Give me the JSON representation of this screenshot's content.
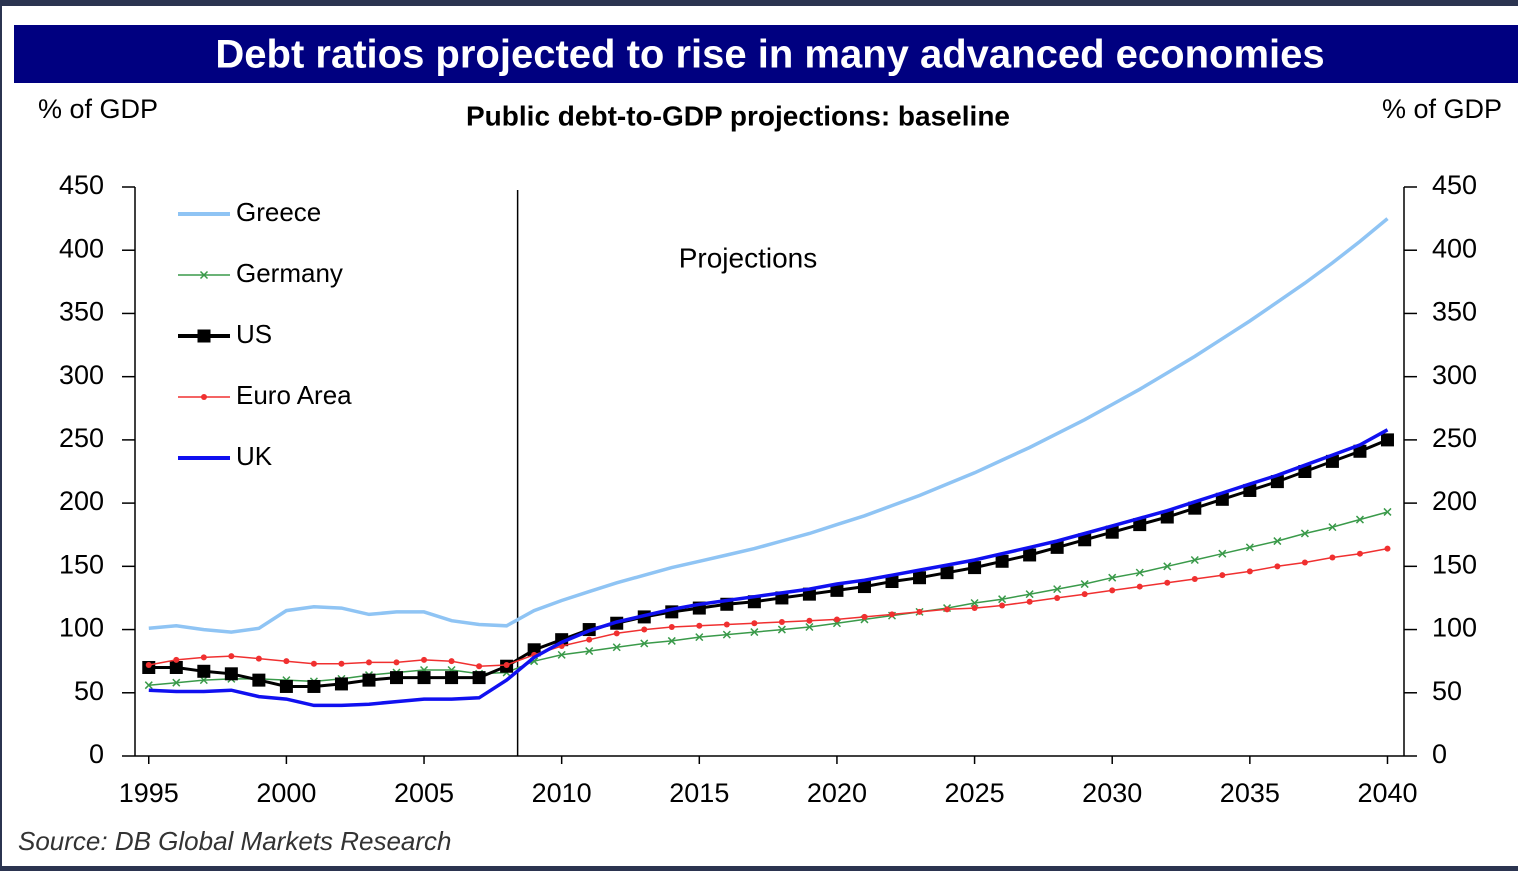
{
  "chart_data": {
    "type": "line",
    "title": "Debt ratios projected to rise in many advanced economies",
    "subtitle": "Public debt-to-GDP projections: baseline",
    "y_label": "% of GDP",
    "y2_label": "% of GDP",
    "source": "Source: DB Global Markets Research",
    "annotation": {
      "text": "Projections",
      "x": 2008.4
    },
    "x": [
      1995,
      1996,
      1997,
      1998,
      1999,
      2000,
      2001,
      2002,
      2003,
      2004,
      2005,
      2006,
      2007,
      2008,
      2009,
      2010,
      2011,
      2012,
      2013,
      2014,
      2015,
      2016,
      2017,
      2018,
      2019,
      2020,
      2021,
      2022,
      2023,
      2024,
      2025,
      2026,
      2027,
      2028,
      2029,
      2030,
      2031,
      2032,
      2033,
      2034,
      2035,
      2036,
      2037,
      2038,
      2039,
      2040
    ],
    "xlim": [
      1994.5,
      2040.6
    ],
    "xticks": [
      1995,
      2000,
      2005,
      2010,
      2015,
      2020,
      2025,
      2030,
      2035,
      2040
    ],
    "ylim": [
      0,
      450
    ],
    "yticks": [
      0,
      50,
      100,
      150,
      200,
      250,
      300,
      350,
      400,
      450
    ],
    "legend": "upper left",
    "series": [
      {
        "name": "Greece",
        "color": "#8fc4f4",
        "marker": "none",
        "values": [
          101,
          103,
          100,
          98,
          101,
          115,
          118,
          117,
          112,
          114,
          114,
          107,
          104,
          103,
          115,
          123,
          130,
          137,
          143,
          149,
          154,
          159,
          164,
          170,
          176,
          183,
          190,
          198,
          206,
          215,
          224,
          234,
          244,
          255,
          266,
          278,
          290,
          303,
          316,
          330,
          344,
          359,
          374,
          390,
          407,
          425
        ]
      },
      {
        "name": "Germany",
        "color": "#3a9a4a",
        "marker": "x",
        "values": [
          56,
          58,
          60,
          61,
          61,
          60,
          59,
          61,
          64,
          66,
          68,
          68,
          65,
          66,
          75,
          80,
          83,
          86,
          89,
          91,
          94,
          96,
          98,
          100,
          102,
          105,
          108,
          111,
          114,
          117,
          121,
          124,
          128,
          132,
          136,
          141,
          145,
          150,
          155,
          160,
          165,
          170,
          176,
          181,
          187,
          193
        ]
      },
      {
        "name": "US",
        "color": "#000000",
        "marker": "square",
        "values": [
          70,
          70,
          67,
          65,
          60,
          55,
          55,
          57,
          60,
          62,
          62,
          62,
          62,
          71,
          84,
          92,
          100,
          105,
          110,
          114,
          117,
          120,
          122,
          125,
          128,
          131,
          134,
          138,
          141,
          145,
          149,
          154,
          159,
          165,
          171,
          177,
          183,
          189,
          196,
          203,
          210,
          217,
          225,
          233,
          241,
          250
        ]
      },
      {
        "name": "Euro Area",
        "color": "#f03030",
        "marker": "dot",
        "values": [
          72,
          76,
          78,
          79,
          77,
          75,
          73,
          73,
          74,
          74,
          76,
          75,
          71,
          72,
          80,
          87,
          92,
          97,
          100,
          102,
          103,
          104,
          105,
          106,
          107,
          108,
          110,
          112,
          114,
          116,
          117,
          119,
          122,
          125,
          128,
          131,
          134,
          137,
          140,
          143,
          146,
          150,
          153,
          157,
          160,
          164
        ]
      },
      {
        "name": "UK",
        "color": "#1010f0",
        "marker": "none",
        "values": [
          52,
          51,
          51,
          52,
          47,
          45,
          40,
          40,
          41,
          43,
          45,
          45,
          46,
          60,
          78,
          90,
          99,
          106,
          111,
          116,
          120,
          123,
          126,
          129,
          132,
          136,
          139,
          143,
          147,
          151,
          155,
          160,
          165,
          170,
          176,
          182,
          188,
          194,
          201,
          208,
          215,
          222,
          230,
          238,
          246,
          258
        ]
      }
    ]
  }
}
